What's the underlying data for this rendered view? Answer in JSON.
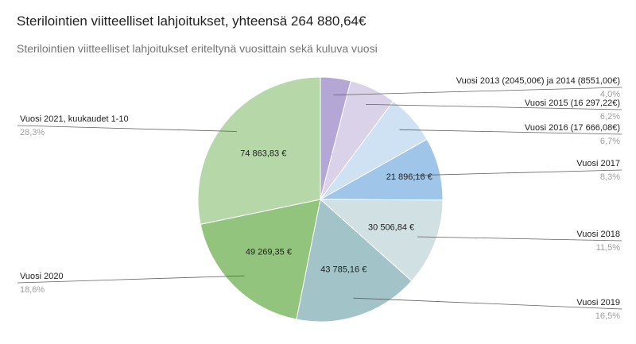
{
  "chart_data": {
    "type": "pie",
    "title": "Sterilointien viitteelliset lahjoitukset, yhteensä 264 880,64€",
    "subtitle": "Sterilointien viitteelliset lahjoitukset eriteltynä vuosittain sekä kuluva vuosi",
    "slices": [
      {
        "label": "Vuosi 2013 (2045,00€) ja 2014 (8551,00€)",
        "value": 10596.0,
        "value_label": "",
        "percent_label": "4,0%",
        "color": "#b4a7d6"
      },
      {
        "label": "Vuosi 2015 (16 297,22€)",
        "value": 16297.22,
        "value_label": "",
        "percent_label": "6,2%",
        "color": "#d9d2e9"
      },
      {
        "label": "Vuosi 2016 (17 666,08€)",
        "value": 17666.08,
        "value_label": "",
        "percent_label": "6,7%",
        "color": "#cfe2f3"
      },
      {
        "label": "Vuosi 2017",
        "value": 21896.16,
        "value_label": "21 896,16 €",
        "percent_label": "8,3%",
        "color": "#9fc5e8"
      },
      {
        "label": "Vuosi 2018",
        "value": 30506.84,
        "value_label": "30 506,84 €",
        "percent_label": "11,5%",
        "color": "#d0e0e3"
      },
      {
        "label": "Vuosi 2019",
        "value": 43785.16,
        "value_label": "43 785,16 €",
        "percent_label": "16,5%",
        "color": "#a2c4c9"
      },
      {
        "label": "Vuosi 2020",
        "value": 49269.35,
        "value_label": "49 269,35 €",
        "percent_label": "18,6%",
        "color": "#93c47d"
      },
      {
        "label": "Vuosi 2021, kuukaudet 1-10",
        "value": 74863.83,
        "value_label": "74 863,83 €",
        "percent_label": "28,3%",
        "color": "#b6d7a8"
      }
    ]
  }
}
